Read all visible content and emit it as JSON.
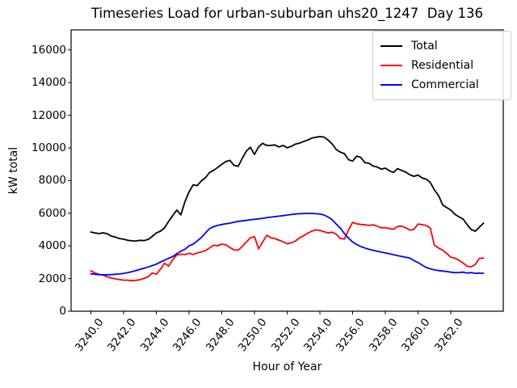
{
  "chart_data": {
    "type": "line",
    "title": "Timeseries Load for urban-suburban uhs20_1247  Day 136",
    "xlabel": "Hour of Year",
    "ylabel": "kW total",
    "xlim": [
      3238.79,
      3265.21
    ],
    "ylim": [
      0,
      17226
    ],
    "grid": false,
    "legend_position": "upper right",
    "x_ticks": {
      "values": [
        3240,
        3242,
        3244,
        3246,
        3248,
        3250,
        3252,
        3254,
        3256,
        3258,
        3260,
        3262
      ],
      "labels": [
        "3240.0",
        "3242.0",
        "3244.0",
        "3246.0",
        "3248.0",
        "3250.0",
        "3252.0",
        "3254.0",
        "3256.0",
        "3258.0",
        "3260.0",
        "3262.0"
      ]
    },
    "y_ticks": {
      "values": [
        0,
        2000,
        4000,
        6000,
        8000,
        10000,
        12000,
        14000,
        16000
      ],
      "labels": [
        "0",
        "2000",
        "4000",
        "6000",
        "8000",
        "10000",
        "12000",
        "14000",
        "16000"
      ]
    },
    "x_start": 3240.0,
    "x_step_hours": 0.25,
    "x_end": 3264.0,
    "series": [
      {
        "name": "Total",
        "color": "#000000",
        "values": [
          4850,
          4790,
          4750,
          4800,
          4740,
          4600,
          4540,
          4450,
          4410,
          4340,
          4310,
          4300,
          4340,
          4320,
          4400,
          4580,
          4790,
          4900,
          5100,
          5500,
          5850,
          6190,
          5900,
          6700,
          7300,
          7740,
          7690,
          7980,
          8170,
          8490,
          8630,
          8800,
          8990,
          9160,
          9240,
          8930,
          8870,
          9350,
          9800,
          10040,
          9600,
          10060,
          10280,
          10150,
          10150,
          10180,
          10060,
          10150,
          10010,
          10100,
          10230,
          10290,
          10390,
          10480,
          10600,
          10650,
          10690,
          10660,
          10480,
          10240,
          9900,
          9740,
          9650,
          9280,
          9190,
          9500,
          9420,
          9100,
          9060,
          8890,
          8830,
          8700,
          8760,
          8600,
          8500,
          8730,
          8620,
          8520,
          8350,
          8260,
          8340,
          8160,
          8090,
          7880,
          7430,
          7090,
          6520,
          6350,
          6190,
          5940,
          5780,
          5650,
          5310,
          5000,
          4900,
          5150,
          5390
        ]
      },
      {
        "name": "Residential",
        "color": "#ff0000",
        "values": [
          2480,
          2340,
          2250,
          2210,
          2110,
          2030,
          1980,
          1940,
          1900,
          1900,
          1870,
          1890,
          1930,
          2010,
          2110,
          2340,
          2260,
          2570,
          2940,
          2760,
          3150,
          3440,
          3490,
          3470,
          3550,
          3470,
          3570,
          3630,
          3710,
          3870,
          4040,
          4010,
          4110,
          4070,
          3900,
          3750,
          3740,
          3960,
          4230,
          4490,
          4570,
          3820,
          4230,
          4650,
          4500,
          4450,
          4350,
          4250,
          4130,
          4190,
          4290,
          4490,
          4620,
          4770,
          4900,
          4980,
          4950,
          4870,
          4790,
          4840,
          4710,
          4450,
          4420,
          4980,
          5440,
          5350,
          5310,
          5290,
          5250,
          5290,
          5210,
          5110,
          5120,
          5060,
          5020,
          5190,
          5210,
          5110,
          4970,
          5010,
          5340,
          5300,
          5250,
          5090,
          4040,
          3870,
          3740,
          3540,
          3310,
          3240,
          3130,
          2950,
          2760,
          2720,
          2870,
          3230,
          3250
        ]
      },
      {
        "name": "Commercial",
        "color": "#0000ff",
        "values": [
          2290,
          2260,
          2240,
          2230,
          2230,
          2240,
          2260,
          2280,
          2310,
          2360,
          2420,
          2490,
          2560,
          2630,
          2710,
          2790,
          2880,
          3010,
          3120,
          3240,
          3340,
          3520,
          3680,
          3790,
          4000,
          4110,
          4300,
          4510,
          4790,
          5050,
          5180,
          5250,
          5310,
          5350,
          5390,
          5450,
          5500,
          5530,
          5560,
          5600,
          5630,
          5660,
          5690,
          5730,
          5760,
          5790,
          5820,
          5850,
          5890,
          5920,
          5950,
          5970,
          5980,
          5990,
          5990,
          5970,
          5950,
          5890,
          5770,
          5600,
          5340,
          5090,
          4750,
          4480,
          4240,
          4080,
          3960,
          3870,
          3790,
          3730,
          3680,
          3620,
          3570,
          3520,
          3460,
          3400,
          3350,
          3300,
          3250,
          3100,
          2980,
          2820,
          2680,
          2600,
          2530,
          2490,
          2460,
          2430,
          2390,
          2360,
          2370,
          2390,
          2340,
          2360,
          2320,
          2330,
          2320
        ]
      }
    ]
  },
  "legend": {
    "items": [
      {
        "label": "Total",
        "color": "#000000"
      },
      {
        "label": "Residential",
        "color": "#ff0000"
      },
      {
        "label": "Commercial",
        "color": "#0000ff"
      }
    ]
  }
}
